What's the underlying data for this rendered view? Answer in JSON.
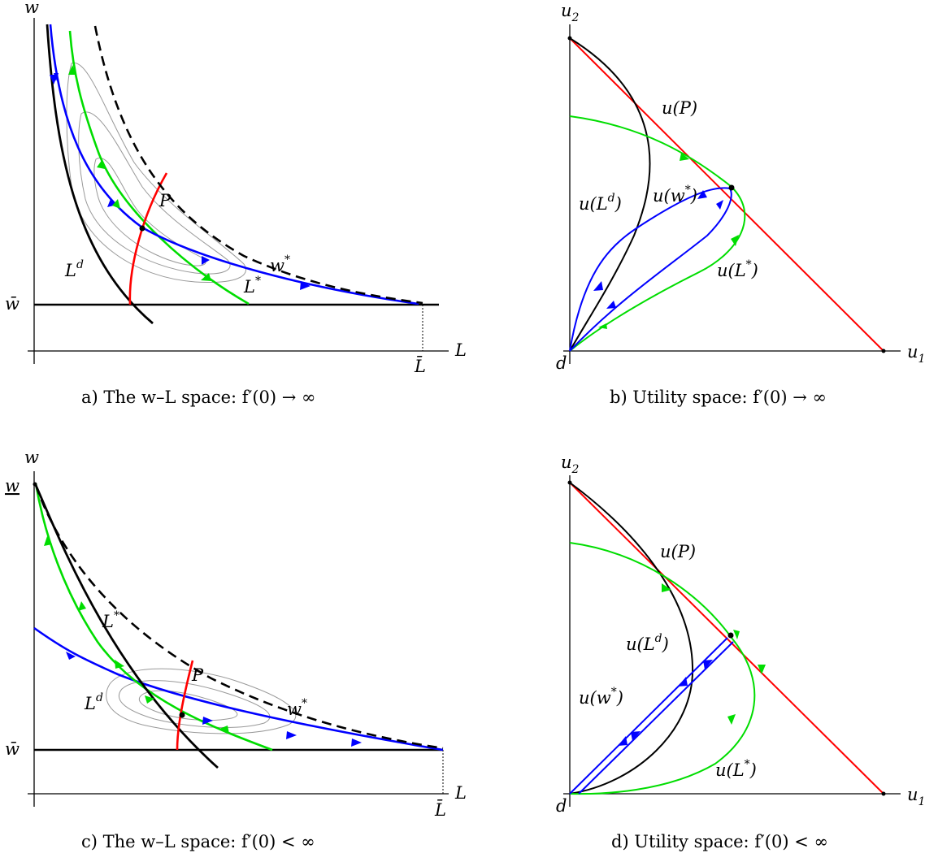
{
  "panels": {
    "a": {
      "caption": "a) The w–L space:  f′(0) → ∞",
      "labels": {
        "y_axis": "w",
        "x_axis": "L",
        "wbar": "w̄",
        "Lbar": "L̄",
        "P": "P",
        "Ld_base": "L",
        "Ld_sup": "d",
        "wstar_base": "w",
        "wstar_sup": "*",
        "Lstar_base": "L",
        "Lstar_sup": "*"
      }
    },
    "b": {
      "caption": "b) Utility space:  f′(0) → ∞",
      "labels": {
        "y_axis_base": "u",
        "y_axis_sub": "2",
        "x_axis_base": "u",
        "x_axis_sub": "1",
        "origin": "d",
        "uP": "u(P)",
        "uLd_base": "u(L",
        "uLd_sup": "d",
        "uLd_end": ")",
        "uw_base": "u(w",
        "uw_sup": "*",
        "uw_end": ")",
        "uL_base": "u(L",
        "uL_sup": "*",
        "uL_end": ")"
      }
    },
    "c": {
      "caption": "c) The w–L space:  f′(0) < ∞",
      "labels": {
        "y_axis": "w",
        "x_axis": "L",
        "wbar": "w̄",
        "wunder": "w",
        "Lbar": "L̄",
        "P": "P",
        "Ld_base": "L",
        "Ld_sup": "d",
        "wstar_base": "w",
        "wstar_sup": "*",
        "Lstar_base": "L",
        "Lstar_sup": "*"
      }
    },
    "d": {
      "caption": "d) Utility space:  f′(0) < ∞",
      "labels": {
        "y_axis_base": "u",
        "y_axis_sub": "2",
        "x_axis_base": "u",
        "x_axis_sub": "1",
        "origin": "d",
        "uP": "u(P)",
        "uLd_base": "u(L",
        "uLd_sup": "d",
        "uLd_end": ")",
        "uw_base": "u(w",
        "uw_sup": "*",
        "uw_end": ")",
        "uL_base": "u(L",
        "uL_sup": "*",
        "uL_end": ")"
      }
    }
  },
  "colors": {
    "blue": "#0000ff",
    "green": "#00dd00",
    "red": "#ff0000",
    "black": "#000000",
    "contour": "#999999"
  }
}
